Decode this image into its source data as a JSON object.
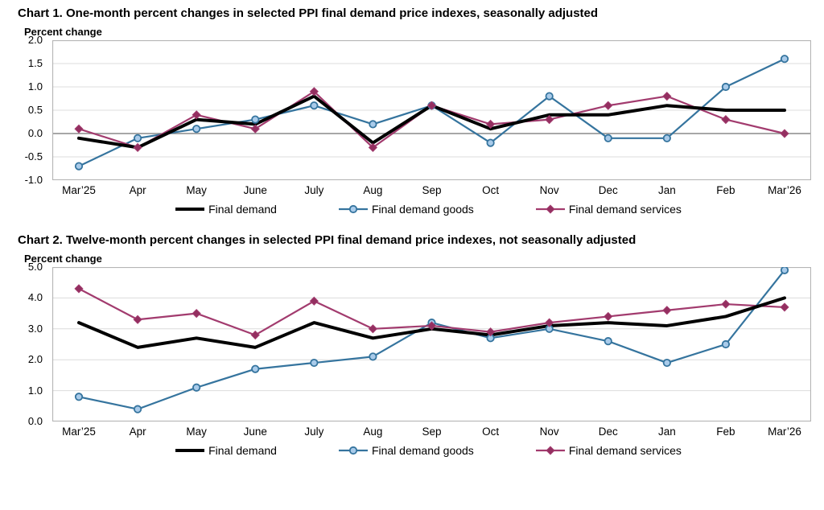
{
  "page": {
    "background": "#ffffff"
  },
  "chart_data": [
    {
      "type": "line",
      "title": "Chart 1. One-month percent changes in selected PPI final demand price indexes, seasonally adjusted",
      "ylabel": "Percent change",
      "xlabel": "",
      "categories": [
        "Mar’25",
        "Apr",
        "May",
        "June",
        "July",
        "Aug",
        "Sep",
        "Oct",
        "Nov",
        "Dec",
        "Jan",
        "Feb",
        "Mar’26"
      ],
      "series": [
        {
          "name": "Final demand",
          "color": "#000000",
          "marker": "none",
          "line_width": 4,
          "values": [
            -0.1,
            -0.3,
            0.3,
            0.2,
            0.8,
            -0.2,
            0.6,
            0.1,
            0.4,
            0.4,
            0.6,
            0.5,
            0.5
          ]
        },
        {
          "name": "Final demand goods",
          "color": "#35749E",
          "marker": "circle",
          "marker_fill": "#A9CBEA",
          "line_width": 2.2,
          "values": [
            -0.7,
            -0.1,
            0.1,
            0.3,
            0.6,
            0.2,
            0.6,
            -0.2,
            0.8,
            -0.1,
            -0.1,
            1.0,
            1.6
          ]
        },
        {
          "name": "Final demand services",
          "color": "#A23B6E",
          "marker": "diamond",
          "marker_fill": "#932F60",
          "line_width": 2.2,
          "values": [
            0.1,
            -0.3,
            0.4,
            0.1,
            0.9,
            -0.3,
            0.6,
            0.2,
            0.3,
            0.6,
            0.8,
            0.3,
            0.0
          ]
        }
      ],
      "ylim": [
        -1.0,
        2.0
      ],
      "ytick_step": 0.5,
      "grid": true,
      "zero_line_emphasized": true,
      "legend_position": "bottom",
      "legend": [
        "Final demand",
        "Final demand goods",
        "Final demand services"
      ]
    },
    {
      "type": "line",
      "title": "Chart 2. Twelve-month percent changes in selected PPI final demand price indexes, not seasonally adjusted",
      "ylabel": "Percent change",
      "xlabel": "",
      "categories": [
        "Mar’25",
        "Apr",
        "May",
        "June",
        "July",
        "Aug",
        "Sep",
        "Oct",
        "Nov",
        "Dec",
        "Jan",
        "Feb",
        "Mar’26"
      ],
      "series": [
        {
          "name": "Final demand",
          "color": "#000000",
          "marker": "none",
          "line_width": 4,
          "values": [
            3.2,
            2.4,
            2.7,
            2.4,
            3.2,
            2.7,
            3.0,
            2.8,
            3.1,
            3.2,
            3.1,
            3.4,
            4.0
          ]
        },
        {
          "name": "Final demand goods",
          "color": "#35749E",
          "marker": "circle",
          "marker_fill": "#A9CBEA",
          "line_width": 2.2,
          "values": [
            0.8,
            0.4,
            1.1,
            1.7,
            1.9,
            2.1,
            3.2,
            2.7,
            3.0,
            2.6,
            1.9,
            2.5,
            4.9
          ]
        },
        {
          "name": "Final demand services",
          "color": "#A23B6E",
          "marker": "diamond",
          "marker_fill": "#932F60",
          "line_width": 2.2,
          "values": [
            4.3,
            3.3,
            3.5,
            2.8,
            3.9,
            3.0,
            3.1,
            2.9,
            3.2,
            3.4,
            3.6,
            3.8,
            3.7
          ]
        }
      ],
      "ylim": [
        0.0,
        5.0
      ],
      "ytick_step": 1.0,
      "grid": true,
      "zero_line_emphasized": true,
      "legend_position": "bottom",
      "legend": [
        "Final demand",
        "Final demand goods",
        "Final demand services"
      ]
    }
  ],
  "style": {
    "grid_color": "#DCDCDC",
    "border_color": "#B5B5B5",
    "zero_line_color": "#8A8A8A"
  }
}
